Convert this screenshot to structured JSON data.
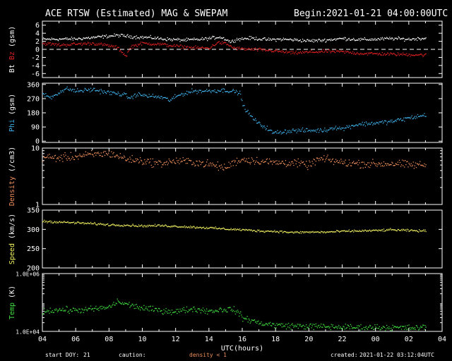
{
  "header": {
    "title": "ACE RTSW (Estimated) MAG & SWEPAM",
    "begin_label": "Begin:",
    "begin_value": "2021-01-21 04:00:00UTC"
  },
  "footer": {
    "start_doy_label": "start DOY:",
    "start_doy_value": "21",
    "caution_label": "caution:",
    "caution_text": "density < 1",
    "created_label": "created:",
    "created_value": "2021-01-22 03:12:04UTC"
  },
  "colors": {
    "bt": "#ffffff",
    "bz": "#e02020",
    "phi": "#40b0e8",
    "density": "#f0905a",
    "speed": "#f0f060",
    "temp": "#40e040",
    "caution": "#f0905a"
  },
  "chart_data": {
    "type": "scatter",
    "x_axis": {
      "label": "UTC(hours)",
      "ticks": [
        "04",
        "06",
        "08",
        "10",
        "12",
        "14",
        "16",
        "18",
        "20",
        "22",
        "00",
        "02",
        "04"
      ],
      "range_hours": [
        0,
        24
      ]
    },
    "panels": [
      {
        "id": "mag",
        "ylabel_parts": [
          {
            "text": "Bt",
            "color": "#ffffff"
          },
          {
            "text": "Bz",
            "color": "#e02020"
          },
          {
            "text": "(gsm)",
            "color": "#ffffff"
          }
        ],
        "ylim": [
          -7,
          7
        ],
        "yticks": [
          6,
          4,
          2,
          0,
          -2,
          -4,
          -6
        ],
        "ytick_labels": [
          "6",
          "4",
          "2",
          "0",
          "-2",
          "-4",
          "-6"
        ],
        "zero_line": true,
        "series": [
          {
            "name": "Bt",
            "color_key": "bt",
            "noise": 0.35,
            "keyframes": [
              [
                0,
                2.6
              ],
              [
                2,
                2.7
              ],
              [
                3.5,
                3.2
              ],
              [
                4.5,
                3.6
              ],
              [
                5.5,
                3.2
              ],
              [
                6.5,
                3.0
              ],
              [
                7.5,
                2.6
              ],
              [
                8.5,
                2.4
              ],
              [
                9.5,
                2.6
              ],
              [
                10,
                2.8
              ],
              [
                10.6,
                3.2
              ],
              [
                11,
                2.6
              ],
              [
                11.3,
                1.9
              ],
              [
                11.6,
                2.6
              ],
              [
                12.5,
                2.9
              ],
              [
                13.5,
                2.5
              ],
              [
                14.3,
                2.6
              ],
              [
                15,
                2.5
              ],
              [
                16,
                2.2
              ],
              [
                17,
                2.4
              ],
              [
                18,
                2.8
              ],
              [
                19,
                2.5
              ],
              [
                20,
                2.6
              ],
              [
                21,
                2.8
              ],
              [
                22,
                2.6
              ],
              [
                23,
                2.9
              ],
              [
                24,
                2.8
              ]
            ]
          },
          {
            "name": "Bz",
            "color_key": "bz",
            "noise": 0.35,
            "keyframes": [
              [
                0,
                1.6
              ],
              [
                1,
                1.2
              ],
              [
                2,
                1.4
              ],
              [
                3,
                1.6
              ],
              [
                4,
                1.0
              ],
              [
                4.5,
                0.5
              ],
              [
                5,
                -1.6
              ],
              [
                5.3,
                0.8
              ],
              [
                6,
                1.6
              ],
              [
                7,
                1.4
              ],
              [
                8,
                0.9
              ],
              [
                9,
                0.5
              ],
              [
                10,
                0.4
              ],
              [
                10.5,
                1.8
              ],
              [
                11,
                1.5
              ],
              [
                11.5,
                0.4
              ],
              [
                12,
                0.2
              ],
              [
                13,
                0
              ],
              [
                14,
                -0.3
              ],
              [
                15,
                -0.8
              ],
              [
                16,
                -0.6
              ],
              [
                17,
                -0.4
              ],
              [
                18,
                -0.5
              ],
              [
                19,
                -0.9
              ],
              [
                20,
                -1.0
              ],
              [
                21,
                -1.1
              ],
              [
                22,
                -1.2
              ],
              [
                23,
                -1.3
              ],
              [
                24,
                -1.1
              ]
            ]
          }
        ]
      },
      {
        "id": "phi",
        "ylabel_parts": [
          {
            "text": "Phi",
            "color": "#40b0e8"
          },
          {
            "text": "(gsm)",
            "color": "#ffffff"
          }
        ],
        "ylim": [
          -8,
          368
        ],
        "yticks": [
          360,
          270,
          180,
          90,
          0
        ],
        "ytick_labels": [
          "360",
          "270",
          "180",
          "90",
          "0"
        ],
        "series": [
          {
            "name": "Phi",
            "color_key": "phi",
            "noise": 12,
            "keyframes": [
              [
                0,
                300
              ],
              [
                0.5,
                280
              ],
              [
                1,
                315
              ],
              [
                1.5,
                335
              ],
              [
                2,
                320
              ],
              [
                3,
                330
              ],
              [
                4,
                310
              ],
              [
                4.8,
                300
              ],
              [
                5.3,
                275
              ],
              [
                5.6,
                300
              ],
              [
                6.3,
                290
              ],
              [
                7.2,
                280
              ],
              [
                7.6,
                262
              ],
              [
                8.3,
                300
              ],
              [
                9,
                320
              ],
              [
                10,
                322
              ],
              [
                11,
                326
              ],
              [
                11.6,
                315
              ],
              [
                11.9,
                302
              ],
              [
                12,
                230
              ],
              [
                12.5,
                160
              ],
              [
                13,
                110
              ],
              [
                13.4,
                90
              ],
              [
                13.8,
                55
              ],
              [
                14.2,
                60
              ],
              [
                15,
                70
              ],
              [
                16,
                70
              ],
              [
                17,
                72
              ],
              [
                17.5,
                92
              ],
              [
                18,
                80
              ],
              [
                18.5,
                100
              ],
              [
                19,
                110
              ],
              [
                20,
                118
              ],
              [
                21,
                128
              ],
              [
                22,
                150
              ],
              [
                23,
                168
              ],
              [
                24,
                172
              ]
            ]
          }
        ]
      },
      {
        "id": "density",
        "ylabel_parts": [
          {
            "text": "Density",
            "color": "#f0905a"
          },
          {
            "text": "(/cm3)",
            "color": "#ffffff"
          }
        ],
        "log": true,
        "ylim": [
          1,
          10
        ],
        "yticks": [
          10,
          1
        ],
        "ytick_labels": [
          "10",
          "1"
        ],
        "series": [
          {
            "name": "Density",
            "color_key": "density",
            "noise_log": 0.06,
            "keyframes": [
              [
                0,
                7.0
              ],
              [
                1,
                6.8
              ],
              [
                2,
                7.2
              ],
              [
                3,
                7.8
              ],
              [
                4,
                8.2
              ],
              [
                5,
                6.5
              ],
              [
                6,
                6.0
              ],
              [
                7,
                5.4
              ],
              [
                8,
                6.0
              ],
              [
                9,
                5.8
              ],
              [
                10,
                5.2
              ],
              [
                11,
                4.5
              ],
              [
                11.5,
                5.8
              ],
              [
                12,
                6.4
              ],
              [
                13,
                6.0
              ],
              [
                14,
                5.6
              ],
              [
                15,
                5.6
              ],
              [
                16,
                5.0
              ],
              [
                16.5,
                6.4
              ],
              [
                17,
                6.4
              ],
              [
                18,
                5.6
              ],
              [
                19,
                5.4
              ],
              [
                20,
                5.3
              ],
              [
                21,
                5.4
              ],
              [
                22,
                5.1
              ],
              [
                23,
                5.1
              ],
              [
                24,
                5.3
              ]
            ]
          }
        ]
      },
      {
        "id": "speed",
        "ylabel_parts": [
          {
            "text": "Speed",
            "color": "#f0f060"
          },
          {
            "text": "(km/s)",
            "color": "#ffffff"
          }
        ],
        "ylim": [
          200,
          350
        ],
        "yticks": [
          350,
          300,
          250,
          200
        ],
        "ytick_labels": [
          "350",
          "300",
          "250",
          "200"
        ],
        "series": [
          {
            "name": "Speed",
            "color_key": "speed",
            "noise": 2.5,
            "keyframes": [
              [
                0,
                322
              ],
              [
                1,
                320
              ],
              [
                2,
                318
              ],
              [
                3,
                316
              ],
              [
                4,
                313
              ],
              [
                5,
                312
              ],
              [
                6,
                310
              ],
              [
                7,
                311
              ],
              [
                8,
                309
              ],
              [
                9,
                307
              ],
              [
                10,
                305
              ],
              [
                11,
                302
              ],
              [
                12,
                300
              ],
              [
                13,
                297
              ],
              [
                14,
                296
              ],
              [
                15,
                293
              ],
              [
                16,
                294
              ],
              [
                17,
                294
              ],
              [
                18,
                296
              ],
              [
                19,
                297
              ],
              [
                20,
                298
              ],
              [
                21,
                300
              ],
              [
                22,
                298
              ],
              [
                23,
                297
              ],
              [
                24,
                296
              ]
            ]
          }
        ]
      },
      {
        "id": "temp",
        "ylabel_parts": [
          {
            "text": "Temp",
            "color": "#40e040"
          },
          {
            "text": "(K)",
            "color": "#ffffff"
          }
        ],
        "log": true,
        "ylim": [
          10000,
          1000000
        ],
        "yticks": [
          1000000,
          10000
        ],
        "ytick_labels": [
          "1.0E+06",
          "1.0E+04"
        ],
        "series": [
          {
            "name": "Temp",
            "color_key": "temp",
            "noise_log": 0.09,
            "keyframes": [
              [
                0,
                52000
              ],
              [
                1,
                58000
              ],
              [
                2,
                55000
              ],
              [
                3,
                60000
              ],
              [
                4,
                70000
              ],
              [
                4.5,
                110000
              ],
              [
                5,
                90000
              ],
              [
                6,
                65000
              ],
              [
                7,
                55000
              ],
              [
                8,
                50000
              ],
              [
                9,
                62000
              ],
              [
                10,
                52000
              ],
              [
                11,
                60000
              ],
              [
                11.5,
                58000
              ],
              [
                12,
                30000
              ],
              [
                13,
                20000
              ],
              [
                14,
                17000
              ],
              [
                15,
                16000
              ],
              [
                16,
                15500
              ],
              [
                17,
                15000
              ],
              [
                18,
                14500
              ],
              [
                19,
                14000
              ],
              [
                20,
                14500
              ],
              [
                21,
                14000
              ],
              [
                22,
                13500
              ],
              [
                23,
                14000
              ],
              [
                24,
                13500
              ]
            ]
          }
        ]
      }
    ]
  }
}
